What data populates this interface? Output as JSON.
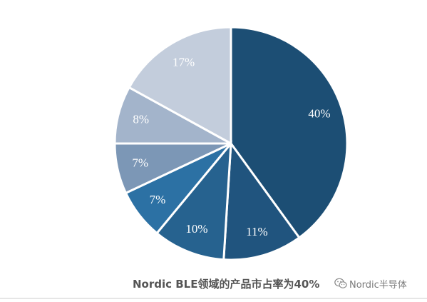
{
  "chart_data": {
    "type": "pie",
    "title": "",
    "slices": [
      {
        "value": 40,
        "label": "40%",
        "color": "#1c4e74"
      },
      {
        "value": 11,
        "label": "11%",
        "color": "#20547e"
      },
      {
        "value": 10,
        "label": "10%",
        "color": "#26628f"
      },
      {
        "value": 7,
        "label": "7%",
        "color": "#2c71a4"
      },
      {
        "value": 7,
        "label": "7%",
        "color": "#7c97b6"
      },
      {
        "value": 8,
        "label": "8%",
        "color": "#a3b4cb"
      },
      {
        "value": 17,
        "label": "17%",
        "color": "#c3cddc"
      }
    ],
    "start_angle": "12 o'clock",
    "direction": "clockwise",
    "legend": "none"
  },
  "caption": "Nordic BLE领域的产品市占率为40%",
  "watermark": {
    "text": "Nordic半导体",
    "icon": "wechat-icon"
  }
}
